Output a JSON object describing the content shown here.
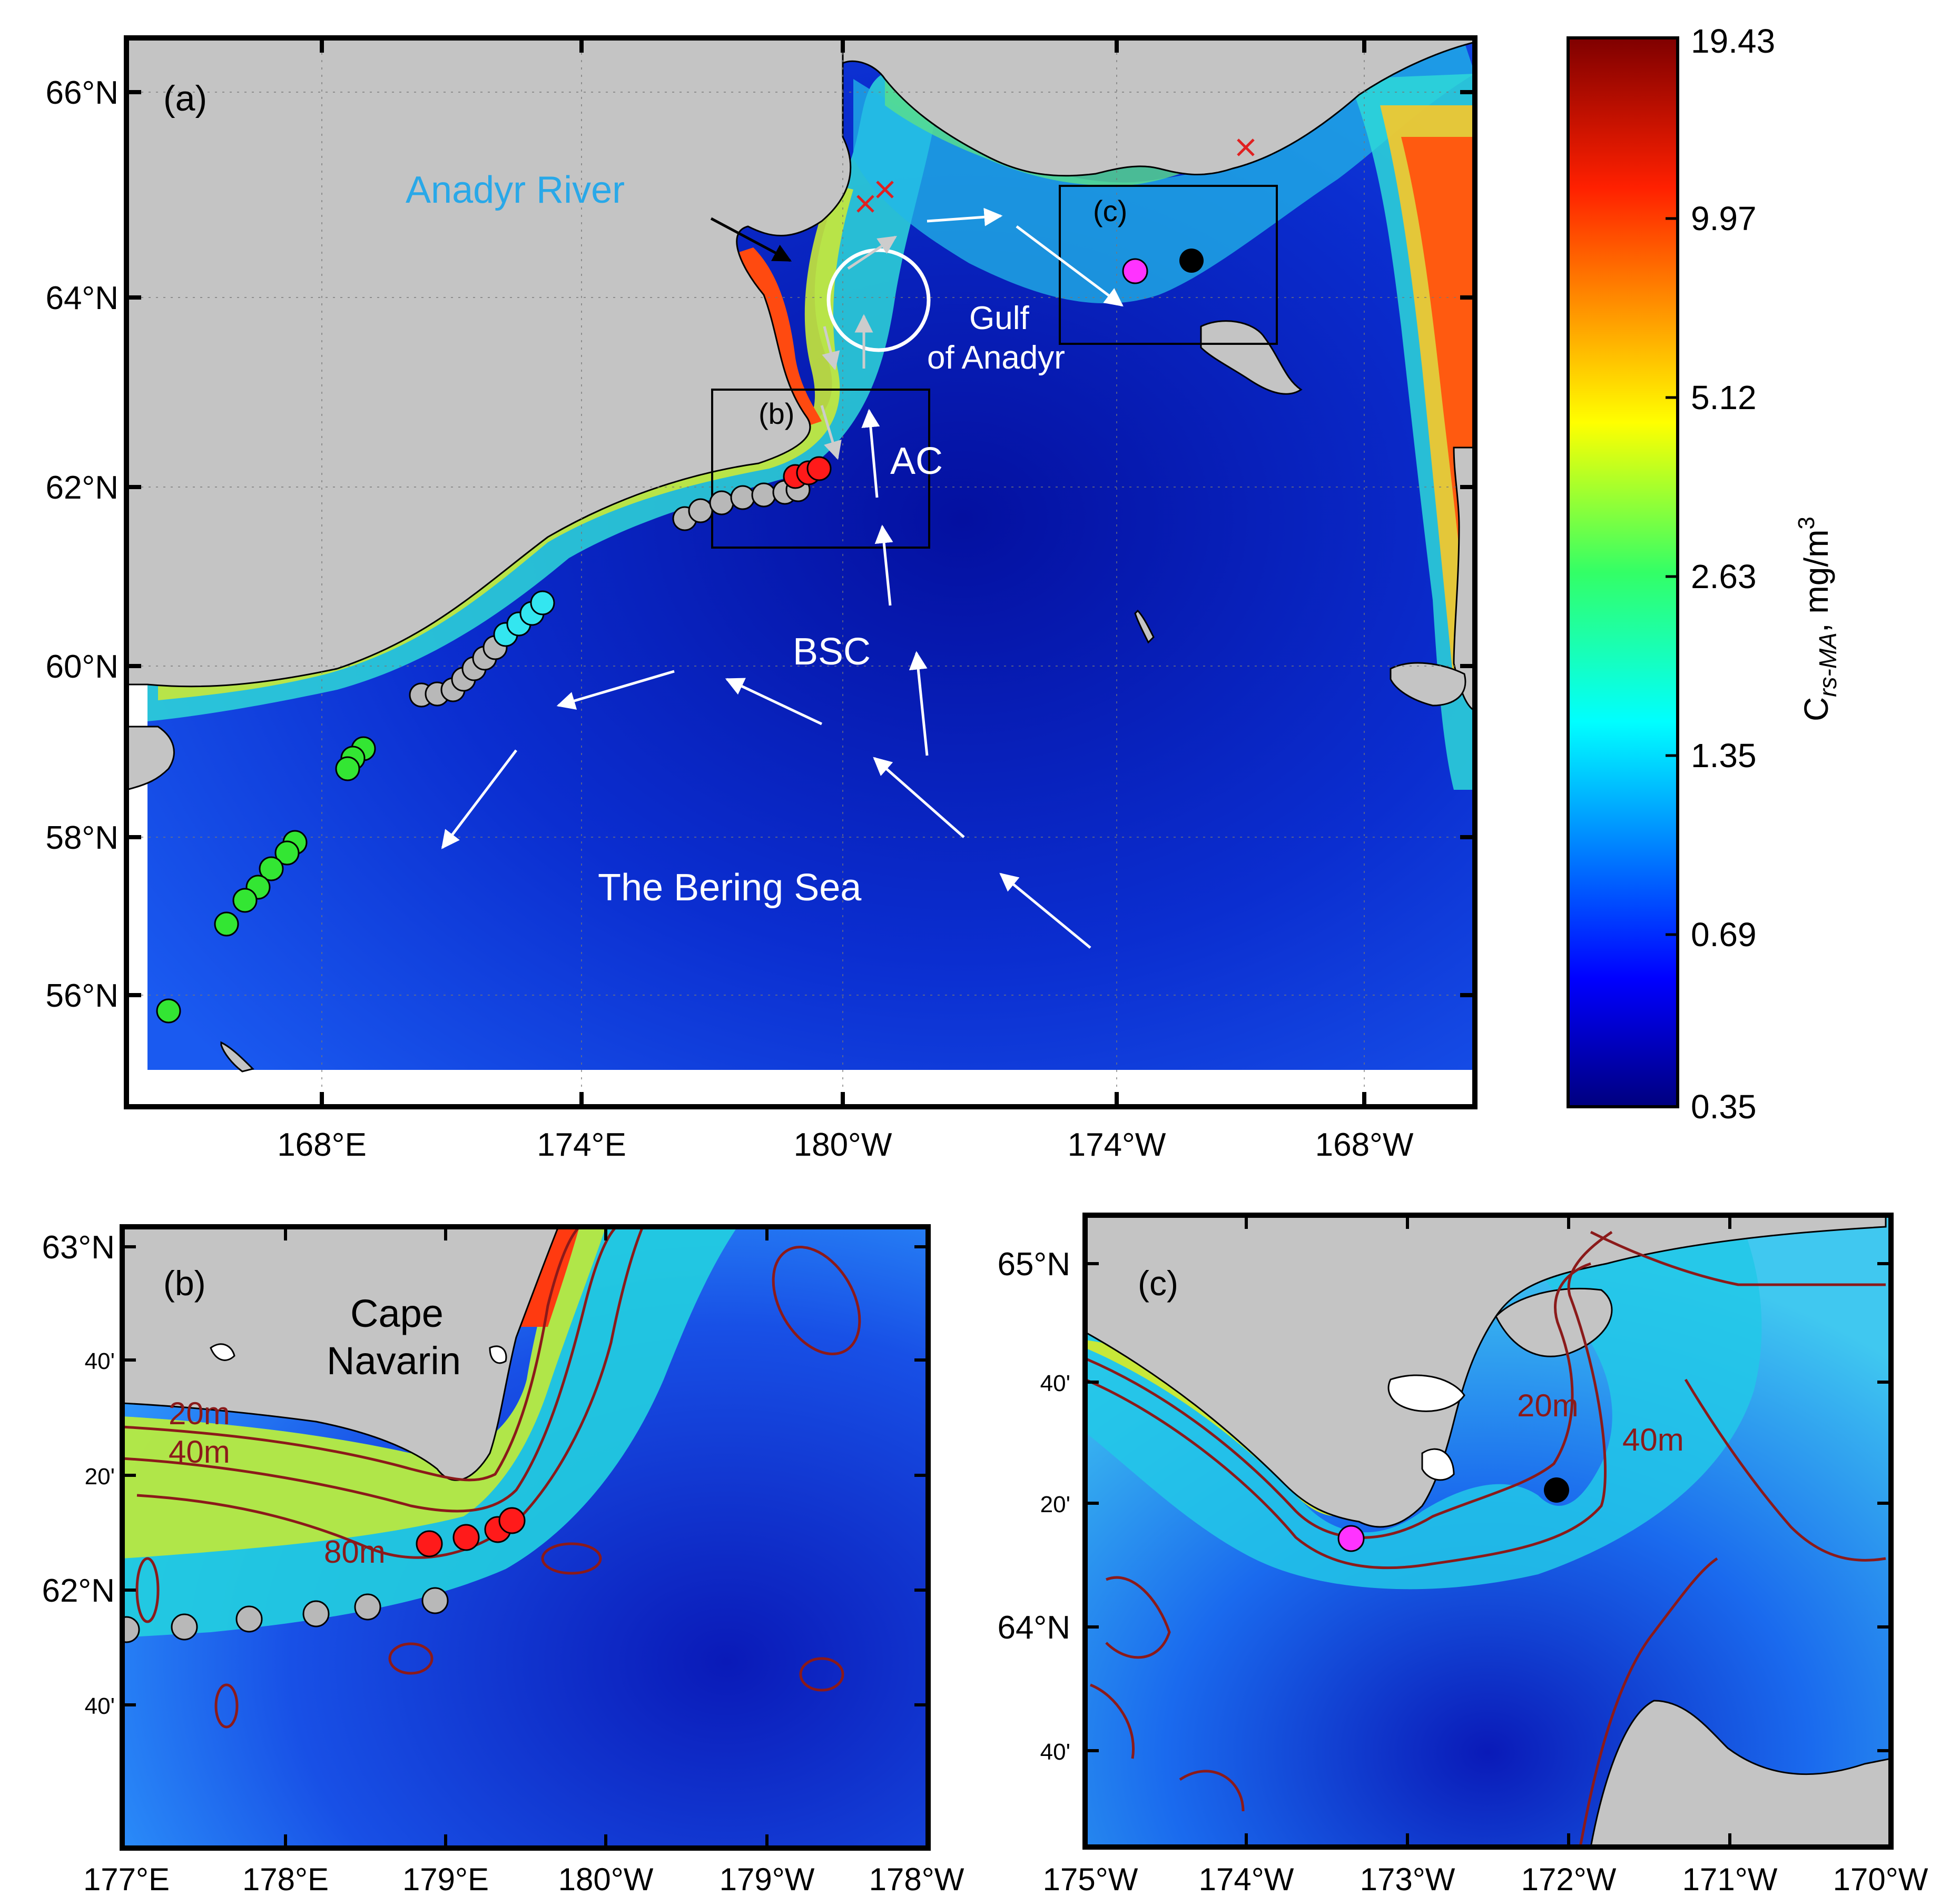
{
  "panel_a": {
    "label": "(a)",
    "lat_ticks": [
      "66°N",
      "64°N",
      "62°N",
      "60°N",
      "58°N",
      "56°N"
    ],
    "lon_ticks": [
      "168°E",
      "174°E",
      "180°W",
      "174°W",
      "168°W"
    ],
    "annotations": {
      "anadyr_river": "Anadyr River",
      "gulf_line1": "Gulf",
      "gulf_line2": "of Anadyr",
      "ac": "AC",
      "bsc": "BSC",
      "bering_sea": "The Bering Sea",
      "inset_b": "(b)",
      "inset_c": "(c)"
    }
  },
  "colorbar": {
    "ticks": [
      "19.43",
      "9.97",
      "5.12",
      "2.63",
      "1.35",
      "0.69",
      "0.35"
    ],
    "label": "C rs-MA, mg/m3",
    "label_main": "C",
    "label_sub": "rs-MA",
    "label_unit": ", mg/m",
    "label_sup": "3"
  },
  "panel_b": {
    "label": "(b)",
    "place_line1": "Cape",
    "place_line2": "Navarin",
    "contours": [
      "20m",
      "40m",
      "80m"
    ],
    "lat_ticks": [
      "63°N",
      "40'",
      "20'",
      "62°N",
      "40'"
    ],
    "lon_ticks": [
      "177°E",
      "178°E",
      "179°E",
      "180°W",
      "179°W",
      "178°W"
    ]
  },
  "panel_c": {
    "label": "(c)",
    "contours": [
      "20m",
      "40m"
    ],
    "lat_ticks": [
      "65°N",
      "40'",
      "20'",
      "64°N",
      "40'"
    ],
    "lon_ticks": [
      "175°W",
      "174°W",
      "173°W",
      "172°W",
      "171°W",
      "170°W"
    ]
  },
  "colors": {
    "land": "#c4c4c4",
    "ocean_deep": "#0a1aa8",
    "stations_gray": "#b8b8b8",
    "stations_red": "#ff1a1a",
    "stations_green": "#33e633",
    "stations_cyan": "#33e6f0",
    "station_magenta": "#ff33ff",
    "contour": "#8b1a1a"
  }
}
